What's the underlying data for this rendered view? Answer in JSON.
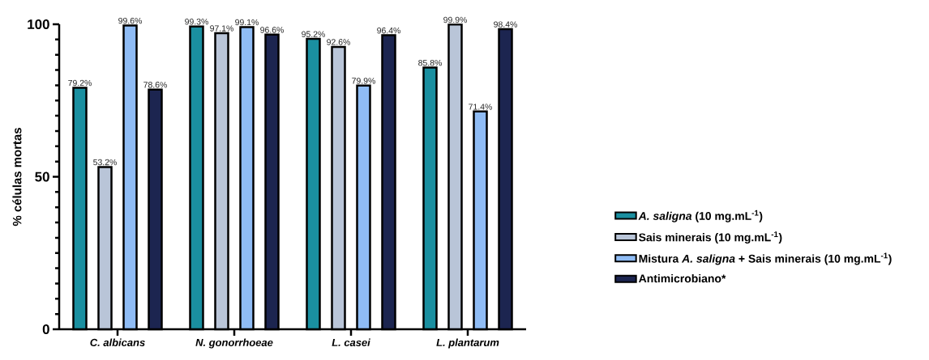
{
  "chart_data": {
    "type": "bar",
    "ylabel": "% células mortas",
    "categories": [
      "C. albicans",
      "N. gonorrhoeae",
      "L. casei",
      "L. plantarum"
    ],
    "series": [
      {
        "name": "*A. saligna* (10 mg.mL$^{-1}$)",
        "color": "#1a8fa0",
        "values": [
          79.2,
          99.3,
          95.2,
          85.8
        ],
        "value_labels": [
          "79.2%",
          "99.3%",
          "95.2%",
          "85.8%"
        ]
      },
      {
        "name": "Sais minerais (10 mg.mL$^{-1}$)",
        "color": "#b9c5d8",
        "values": [
          53.2,
          97.1,
          92.6,
          99.9
        ],
        "value_labels": [
          "53.2%",
          "97.1%",
          "92.6%",
          "99.9%"
        ]
      },
      {
        "name": "Mistura *A. saligna* + Sais minerais (10 mg.mL$^{-1}$)",
        "color": "#8fbcf5",
        "values": [
          99.6,
          99.1,
          79.9,
          71.4
        ],
        "value_labels": [
          "99.6%",
          "99.1%",
          "79.9%",
          "71.4%"
        ]
      },
      {
        "name": "Antimicrobiano*",
        "color": "#1c2550",
        "values": [
          78.6,
          96.6,
          96.4,
          98.4
        ],
        "value_labels": [
          "78.6%",
          "96.6%",
          "96.4%",
          "98.4%"
        ]
      }
    ],
    "ylim": [
      0,
      100
    ],
    "yticks": [
      0,
      {
        "value": 5,
        "label": null
      },
      {
        "value": 10,
        "label": null
      },
      {
        "value": 15,
        "label": null
      },
      {
        "value": 20,
        "label": null
      },
      {
        "value": 25,
        "label": null
      },
      {
        "value": 30,
        "label": null
      },
      {
        "value": 35,
        "label": null
      },
      {
        "value": 40,
        "label": null
      },
      {
        "value": 45,
        "label": null
      },
      50,
      {
        "value": 55,
        "label": null
      },
      {
        "value": 60,
        "label": null
      },
      {
        "value": 65,
        "label": null
      },
      {
        "value": 70,
        "label": null
      },
      {
        "value": 75,
        "label": null
      },
      {
        "value": 80,
        "label": null
      },
      {
        "value": 85,
        "label": null
      },
      {
        "value": 90,
        "label": null
      },
      {
        "value": 95,
        "label": null
      },
      100
    ],
    "grid": false,
    "legend": "right"
  }
}
